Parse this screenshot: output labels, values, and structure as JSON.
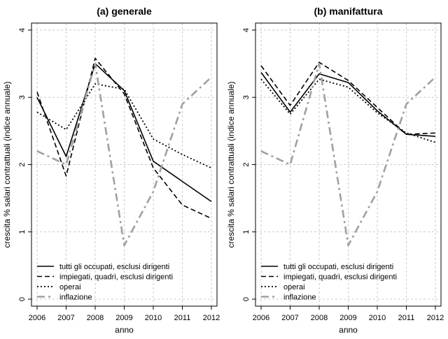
{
  "colors": {
    "line_black": "#000000",
    "inflation_gray": "#a0a0a0",
    "grid": "#c8c8c8"
  },
  "chart_data": [
    {
      "type": "line",
      "title": "(a) generale",
      "xlabel": "anno",
      "ylabel": "crescita % salari contrattuali (indice annuale)",
      "x": [
        2006,
        2007,
        2008,
        2009,
        2010,
        2011,
        2012
      ],
      "xlim": [
        2006,
        2012
      ],
      "ylim": [
        0,
        4
      ],
      "yticks": [
        0,
        1,
        2,
        3,
        4
      ],
      "grid": true,
      "legend_position": "bottom-left",
      "series": [
        {
          "name": "tutti gli occupati, esclusi dirigenti",
          "style": "solid",
          "values": [
            3.0,
            2.12,
            3.5,
            3.1,
            2.05,
            1.75,
            1.45
          ]
        },
        {
          "name": "impiegati, quadri, esclusi dirigenti",
          "style": "dashed",
          "values": [
            3.08,
            1.83,
            3.58,
            3.05,
            1.95,
            1.4,
            1.2
          ]
        },
        {
          "name": "operai",
          "style": "dotted",
          "values": [
            2.78,
            2.52,
            3.2,
            3.12,
            2.38,
            2.15,
            1.95
          ]
        },
        {
          "name": "inflazione",
          "style": "dashdot",
          "values": [
            2.2,
            2.0,
            3.5,
            0.8,
            1.6,
            2.9,
            3.3
          ]
        }
      ]
    },
    {
      "type": "line",
      "title": "(b) manifattura",
      "xlabel": "anno",
      "ylabel": "crescita % salari contrattuali (indice annuale)",
      "x": [
        2006,
        2007,
        2008,
        2009,
        2010,
        2011,
        2012
      ],
      "xlim": [
        2006,
        2012
      ],
      "ylim": [
        0,
        4
      ],
      "yticks": [
        0,
        1,
        2,
        3,
        4
      ],
      "grid": true,
      "legend_position": "bottom-left",
      "series": [
        {
          "name": "tutti gli occupati, esclusi dirigenti",
          "style": "solid",
          "values": [
            3.37,
            2.78,
            3.35,
            3.22,
            2.8,
            2.45,
            2.42
          ]
        },
        {
          "name": "impiegati, quadri, esclusi dirigenti",
          "style": "dashed",
          "values": [
            3.47,
            2.88,
            3.52,
            3.25,
            2.85,
            2.45,
            2.47
          ]
        },
        {
          "name": "operai",
          "style": "dotted",
          "values": [
            3.27,
            2.75,
            3.27,
            3.15,
            2.77,
            2.47,
            2.33
          ]
        },
        {
          "name": "inflazione",
          "style": "dashdot",
          "values": [
            2.2,
            2.0,
            3.5,
            0.8,
            1.6,
            2.9,
            3.3
          ]
        }
      ]
    }
  ]
}
